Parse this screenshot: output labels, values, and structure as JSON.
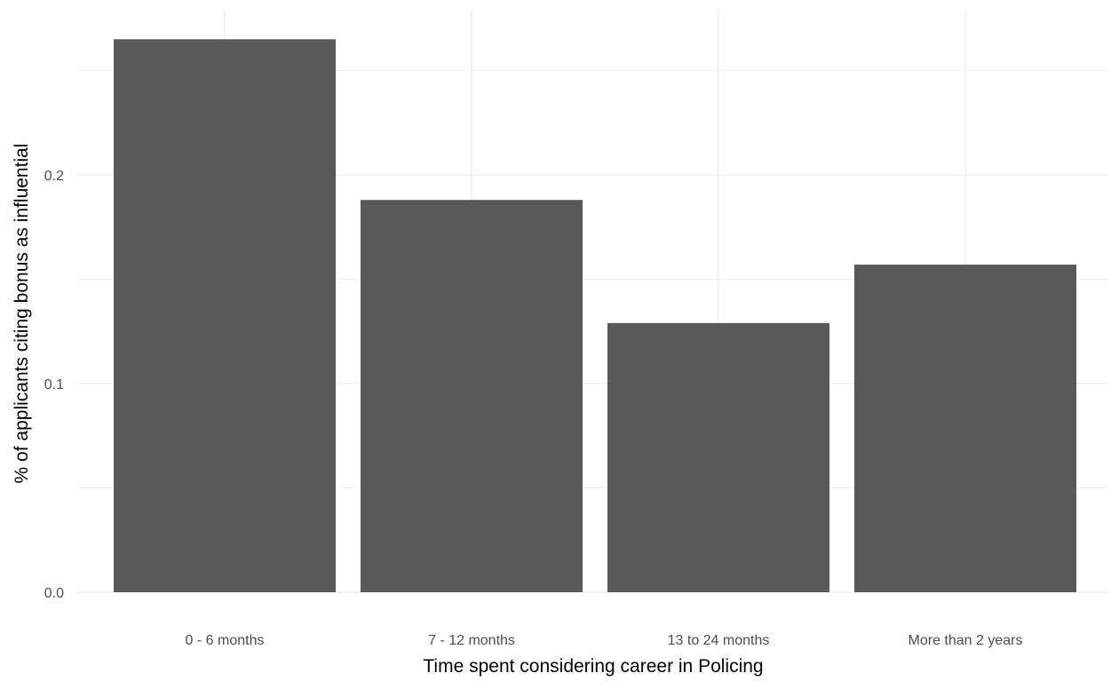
{
  "chart_data": {
    "type": "bar",
    "categories": [
      "0 - 6 months",
      "7 - 12 months",
      "13 to 24 months",
      "More than 2 years"
    ],
    "values": [
      0.265,
      0.188,
      0.129,
      0.157
    ],
    "xlabel": "Time spent considering career in Policing",
    "ylabel": "% of applicants citing bonus as influential",
    "ylim": [
      0,
      0.28
    ],
    "yticks": [
      0.0,
      0.1,
      0.2
    ],
    "ytick_labels": [
      "0.0",
      "0.1",
      "0.2"
    ],
    "grid": true,
    "bar_color": "#595959",
    "grid_color": "#ebebeb"
  }
}
